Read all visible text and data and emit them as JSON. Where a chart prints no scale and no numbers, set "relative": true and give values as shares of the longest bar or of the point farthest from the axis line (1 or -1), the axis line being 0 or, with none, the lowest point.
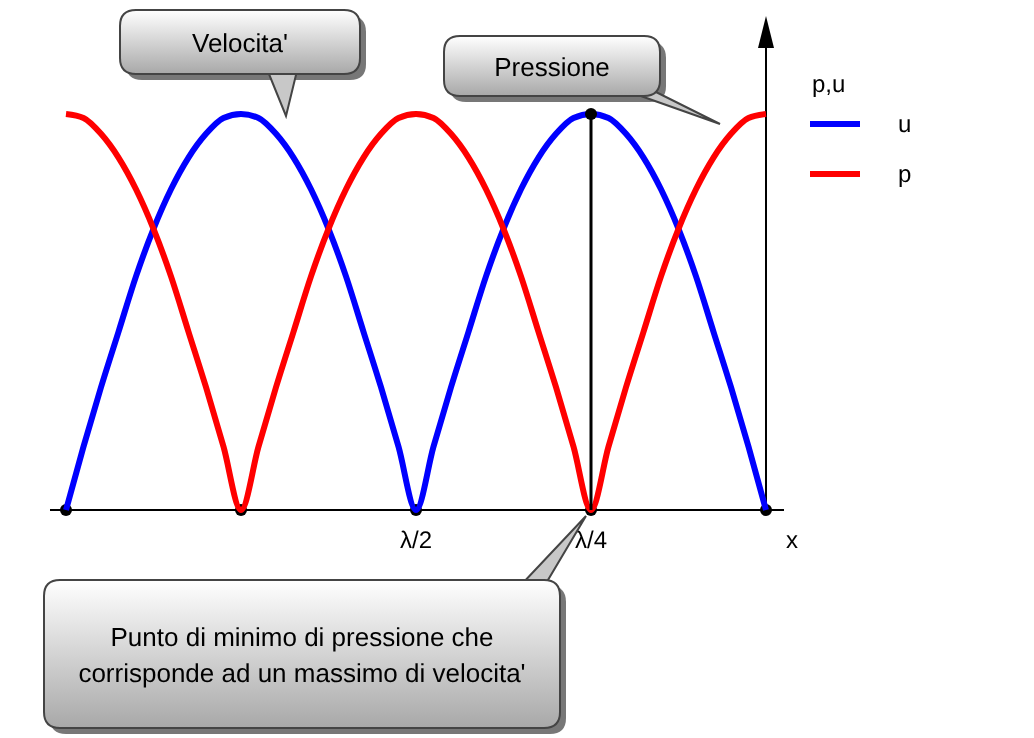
{
  "chart_data": {
    "type": "line",
    "relative": true,
    "xlabel": "x",
    "ylabel": "p,u",
    "legend": "right",
    "marker": "none",
    "line_style": "solid",
    "categories": [
      null,
      null,
      null,
      null,
      null,
      null,
      null,
      null,
      null,
      null,
      null,
      null,
      null,
      null,
      null,
      null,
      null,
      null,
      null,
      null,
      "λ/2",
      null,
      null,
      null,
      null,
      null,
      null,
      null,
      null,
      null,
      "λ/4",
      null,
      null,
      null,
      null,
      null,
      null,
      null,
      null,
      null,
      null
    ],
    "series": [
      {
        "name": "u",
        "color": "#0000ff",
        "values": [
          0,
          0.16,
          0.31,
          0.45,
          0.59,
          0.71,
          0.81,
          0.89,
          0.95,
          0.99,
          1,
          0.99,
          0.95,
          0.89,
          0.81,
          0.71,
          0.59,
          0.45,
          0.31,
          0.16,
          0,
          0.16,
          0.31,
          0.45,
          0.59,
          0.71,
          0.81,
          0.89,
          0.95,
          0.99,
          1,
          0.99,
          0.95,
          0.89,
          0.81,
          0.71,
          0.59,
          0.45,
          0.31,
          0.16,
          0
        ]
      },
      {
        "name": "p",
        "color": "#ff0000",
        "values": [
          1,
          0.99,
          0.95,
          0.89,
          0.81,
          0.71,
          0.59,
          0.45,
          0.31,
          0.16,
          0,
          0.16,
          0.31,
          0.45,
          0.59,
          0.71,
          0.81,
          0.89,
          0.95,
          0.99,
          1,
          0.99,
          0.95,
          0.89,
          0.81,
          0.71,
          0.59,
          0.45,
          0.31,
          0.16,
          0,
          0.16,
          0.31,
          0.45,
          0.59,
          0.71,
          0.81,
          0.89,
          0.95,
          0.99,
          1
        ]
      }
    ],
    "ref_lines": [
      {
        "axis": "x",
        "value": "λ/4",
        "color": "#000000"
      }
    ],
    "annotations": [
      "Velocita'",
      "Pressione",
      "Punto di minimo di pressione che corrisponde ad un massimo di velocita'"
    ]
  }
}
